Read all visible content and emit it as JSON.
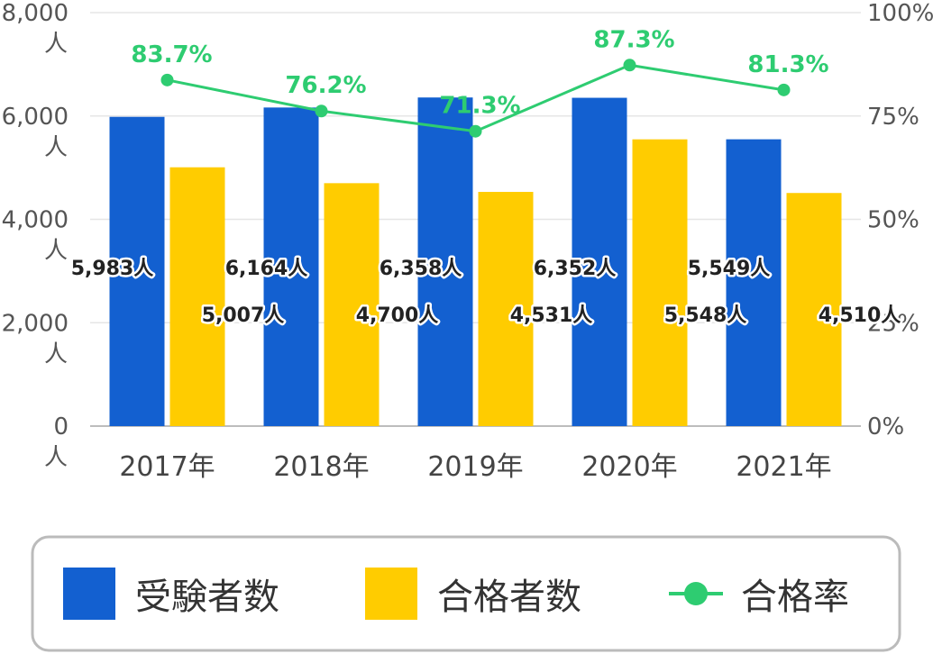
{
  "chart_data": {
    "type": "bar",
    "categories": [
      "2017年",
      "2018年",
      "2019年",
      "2020年",
      "2021年"
    ],
    "series": [
      {
        "name": "受験者数",
        "axis": "left",
        "color": "#1360d0",
        "values": [
          5983,
          6164,
          6358,
          6352,
          5549
        ],
        "labels": [
          "5,983人",
          "6,164人",
          "6,358人",
          "6,352人",
          "5,549人"
        ]
      },
      {
        "name": "合格者数",
        "axis": "left",
        "color": "#ffcc00",
        "values": [
          5007,
          4700,
          4531,
          5548,
          4510
        ],
        "labels": [
          "5,007人",
          "4,700人",
          "4,531人",
          "5,548人",
          "4,510人"
        ]
      },
      {
        "name": "合格率",
        "type": "line",
        "axis": "right",
        "color": "#2ecc71",
        "values": [
          83.7,
          76.2,
          71.3,
          87.3,
          81.3
        ],
        "labels": [
          "83.7%",
          "76.2%",
          "71.3%",
          "87.3%",
          "81.3%"
        ]
      }
    ],
    "left_axis": {
      "ylim": [
        0,
        8000
      ],
      "ticks": [
        {
          "value": 0,
          "num": "0",
          "unit": "人"
        },
        {
          "value": 2000,
          "num": "2,000",
          "unit": "人"
        },
        {
          "value": 4000,
          "num": "4,000",
          "unit": "人"
        },
        {
          "value": 6000,
          "num": "6,000",
          "unit": "人"
        },
        {
          "value": 8000,
          "num": "8,000",
          "unit": "人"
        }
      ]
    },
    "right_axis": {
      "ylim": [
        0,
        100
      ],
      "ticks": [
        {
          "value": 0,
          "label": "0%"
        },
        {
          "value": 25,
          "label": "25%"
        },
        {
          "value": 50,
          "label": "50%"
        },
        {
          "value": 75,
          "label": "75%"
        },
        {
          "value": 100,
          "label": "100%"
        }
      ]
    },
    "grid": true,
    "legend_position": "bottom",
    "title": "",
    "xlabel": "",
    "ylabel": ""
  }
}
